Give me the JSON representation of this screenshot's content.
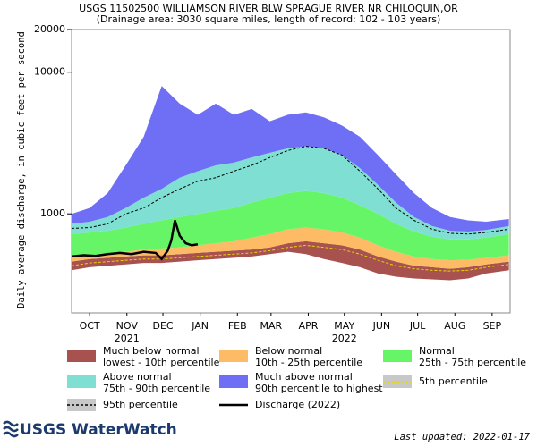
{
  "chart_data": {
    "type": "band",
    "title": "USGS 11502500 WILLIAMSON RIVER BLW SPRAGUE RIVER NR CHILOQUIN,OR",
    "subtitle": "(Drainage area: 3030 square miles, length of record: 102 - 103 years)",
    "y_label": "Daily average discharge, in cubic feet per second",
    "ylog": true,
    "ylim": [
      200,
      20000
    ],
    "yticks": [
      1000,
      10000,
      20000
    ],
    "xlim": [
      0,
      365
    ],
    "xticks": [
      {
        "value": 15,
        "label": "OCT"
      },
      {
        "value": 46,
        "label": "NOV"
      },
      {
        "value": 76,
        "label": "DEC"
      },
      {
        "value": 107,
        "label": "JAN"
      },
      {
        "value": 138,
        "label": "FEB"
      },
      {
        "value": 166,
        "label": "MAR"
      },
      {
        "value": 197,
        "label": "APR"
      },
      {
        "value": 227,
        "label": "MAY"
      },
      {
        "value": 258,
        "label": "JUN"
      },
      {
        "value": 288,
        "label": "JUL"
      },
      {
        "value": 319,
        "label": "AUG"
      },
      {
        "value": 350,
        "label": "SEP"
      }
    ],
    "year_labels": [
      {
        "value": 46,
        "label": "2021"
      },
      {
        "value": 227,
        "label": "2022"
      }
    ],
    "x": [
      0,
      15,
      30,
      45,
      60,
      75,
      90,
      105,
      120,
      135,
      150,
      165,
      180,
      195,
      210,
      225,
      240,
      255,
      270,
      285,
      300,
      315,
      330,
      345,
      364
    ],
    "series": [
      {
        "name": "Much below normal",
        "sublabel": "lowest - 10th percentile",
        "type": "band",
        "color": "#a8524f",
        "lower": [
          400,
          420,
          430,
          440,
          450,
          450,
          460,
          470,
          480,
          490,
          500,
          520,
          540,
          520,
          480,
          450,
          420,
          380,
          360,
          350,
          345,
          340,
          350,
          380,
          400
        ],
        "values": [
          460,
          480,
          490,
          500,
          510,
          510,
          520,
          530,
          540,
          550,
          560,
          580,
          620,
          640,
          620,
          600,
          560,
          500,
          460,
          430,
          420,
          410,
          420,
          440,
          460
        ]
      },
      {
        "name": "Below normal",
        "sublabel": "10th - 25th percentile",
        "type": "band",
        "color": "#fcbb64",
        "values": [
          500,
          510,
          520,
          540,
          560,
          570,
          580,
          600,
          620,
          640,
          680,
          720,
          780,
          800,
          780,
          740,
          680,
          600,
          540,
          500,
          480,
          470,
          475,
          490,
          510
        ]
      },
      {
        "name": "Normal",
        "sublabel": "25th - 75th percentile",
        "type": "band",
        "color": "#66f566",
        "values": [
          720,
          740,
          760,
          800,
          850,
          900,
          950,
          1000,
          1050,
          1100,
          1200,
          1300,
          1400,
          1450,
          1400,
          1300,
          1150,
          1000,
          850,
          750,
          690,
          660,
          660,
          680,
          720
        ]
      },
      {
        "name": "Above normal",
        "sublabel": "75th - 90th percentile",
        "type": "band",
        "color": "#7fdfd3",
        "values": [
          850,
          880,
          950,
          1100,
          1300,
          1500,
          1800,
          2000,
          2200,
          2300,
          2500,
          2700,
          2900,
          3000,
          2900,
          2600,
          2100,
          1600,
          1200,
          950,
          820,
          760,
          750,
          770,
          820
        ]
      },
      {
        "name": "Much above normal",
        "sublabel": "90th percentile to highest",
        "type": "band",
        "color": "#6f6ff5",
        "values": [
          1000,
          1100,
          1400,
          2200,
          3500,
          8000,
          6000,
          5000,
          6000,
          5000,
          5500,
          4500,
          5000,
          5200,
          4800,
          4200,
          3500,
          2600,
          1900,
          1400,
          1100,
          950,
          900,
          880,
          920
        ]
      },
      {
        "name": "5th percentile",
        "type": "line",
        "dash": true,
        "color": "#e8d800",
        "swatch": "#c8c8c8",
        "values": [
          430,
          450,
          460,
          470,
          480,
          480,
          490,
          500,
          510,
          520,
          530,
          550,
          580,
          600,
          580,
          560,
          520,
          470,
          430,
          410,
          400,
          395,
          400,
          420,
          440
        ]
      },
      {
        "name": "95th percentile",
        "type": "line",
        "dash": true,
        "color": "#000000",
        "swatch": "#c8c8c8",
        "values": [
          790,
          800,
          850,
          1000,
          1100,
          1300,
          1500,
          1700,
          1800,
          2000,
          2200,
          2500,
          2800,
          3000,
          2900,
          2600,
          2000,
          1500,
          1100,
          900,
          780,
          730,
          720,
          740,
          780
        ]
      },
      {
        "name": "Discharge (2022)",
        "type": "line",
        "dash": false,
        "color": "#000000",
        "x": [
          0,
          10,
          20,
          30,
          40,
          50,
          60,
          70,
          75,
          80,
          83,
          86,
          90,
          95,
          100,
          105
        ],
        "values": [
          500,
          510,
          505,
          520,
          530,
          520,
          540,
          530,
          480,
          550,
          650,
          900,
          700,
          620,
          600,
          610
        ]
      }
    ],
    "logo": "USGS WaterWatch",
    "updated": "Last updated: 2022-01-17"
  }
}
